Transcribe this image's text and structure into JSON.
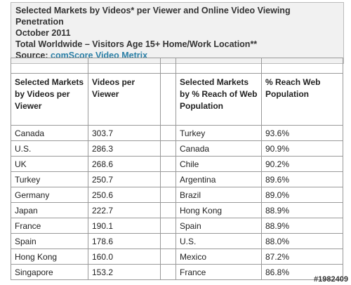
{
  "header": {
    "lines": [
      "Selected Markets by Videos* per Viewer and Online Video Viewing Penetration",
      "October 2011",
      "Total Worldwide – Visitors Age 15+ Home/Work Location**"
    ],
    "source_label": "Source:",
    "source": "comScore Video Metrix"
  },
  "table": {
    "columns": [
      "Selected Markets by Videos per Viewer",
      "Videos per Viewer",
      "Selected Markets by % Reach of Web Population",
      "% Reach Web Population"
    ],
    "rows": [
      [
        "Canada",
        "303.7",
        "Turkey",
        "93.6%"
      ],
      [
        "U.S.",
        "286.3",
        "Canada",
        "90.9%"
      ],
      [
        "UK",
        "268.6",
        "Chile",
        "90.2%"
      ],
      [
        "Turkey",
        "250.7",
        "Argentina",
        "89.6%"
      ],
      [
        "Germany",
        "250.6",
        "Brazil",
        "89.0%"
      ],
      [
        "Japan",
        "222.7",
        "Hong Kong",
        "88.9%"
      ],
      [
        "France",
        "190.1",
        "Spain",
        "88.9%"
      ],
      [
        "Spain",
        "178.6",
        "U.S.",
        "88.0%"
      ],
      [
        "Hong Kong",
        "160.0",
        "Mexico",
        "87.2%"
      ],
      [
        "Singapore",
        "153.2",
        "France",
        "86.8%"
      ]
    ]
  },
  "watermark": "#1982409"
}
